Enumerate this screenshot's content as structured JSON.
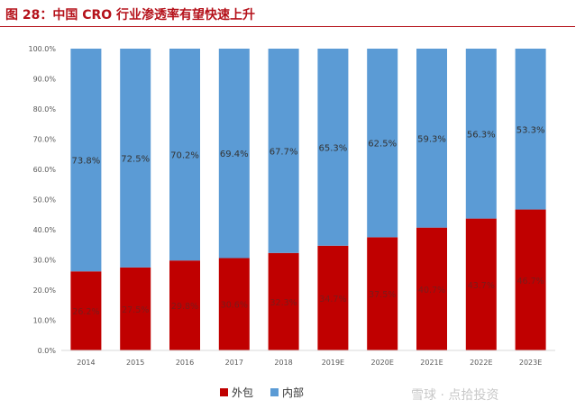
{
  "figure": {
    "title": "图 28：中国 CRO 行业渗透率有望快速上升"
  },
  "watermark": "雪球 · 点拾投资",
  "colors": {
    "outsourced": "#c00000",
    "inhouse": "#5b9bd5",
    "title": "#b5121b"
  },
  "chart_data": {
    "type": "bar",
    "stacked": true,
    "percent": true,
    "categories": [
      "2014",
      "2015",
      "2016",
      "2017",
      "2018",
      "2019E",
      "2020E",
      "2021E",
      "2022E",
      "2023E"
    ],
    "series": [
      {
        "name": "外包",
        "color": "#c00000",
        "values": [
          26.2,
          27.5,
          29.8,
          30.6,
          32.3,
          34.7,
          37.5,
          40.7,
          43.7,
          46.7
        ],
        "labels": [
          "26.2%",
          "27.5%",
          "29.8%",
          "30.6%",
          "32.3%",
          "34.7%",
          "37.5%",
          "40.7%",
          "43.7%",
          "46.7%"
        ]
      },
      {
        "name": "内部",
        "color": "#5b9bd5",
        "values": [
          73.8,
          72.5,
          70.2,
          69.4,
          67.7,
          65.3,
          62.5,
          59.3,
          56.3,
          53.3
        ],
        "labels": [
          "73.8%",
          "72.5%",
          "70.2%",
          "69.4%",
          "67.7%",
          "65.3%",
          "62.5%",
          "59.3%",
          "56.3%",
          "53.3%"
        ]
      }
    ],
    "ylim": [
      0,
      100
    ],
    "yticks": [
      "0.0%",
      "10.0%",
      "20.0%",
      "30.0%",
      "40.0%",
      "50.0%",
      "60.0%",
      "70.0%",
      "80.0%",
      "90.0%",
      "100.0%"
    ],
    "grid": false,
    "legend_position": "bottom"
  }
}
